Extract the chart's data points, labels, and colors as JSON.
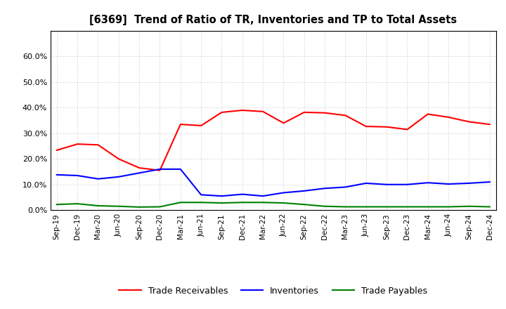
{
  "title": "[6369]  Trend of Ratio of TR, Inventories and TP to Total Assets",
  "x_labels": [
    "Sep-19",
    "Dec-19",
    "Mar-20",
    "Jun-20",
    "Sep-20",
    "Dec-20",
    "Mar-21",
    "Jun-21",
    "Sep-21",
    "Dec-21",
    "Mar-22",
    "Jun-22",
    "Sep-22",
    "Dec-22",
    "Mar-23",
    "Jun-23",
    "Sep-23",
    "Dec-23",
    "Mar-24",
    "Jun-24",
    "Sep-24",
    "Dec-24"
  ],
  "trade_receivables": [
    0.234,
    0.258,
    0.255,
    0.2,
    0.165,
    0.155,
    0.335,
    0.33,
    0.382,
    0.39,
    0.385,
    0.34,
    0.382,
    0.38,
    0.37,
    0.327,
    0.325,
    0.315,
    0.375,
    0.363,
    0.345,
    0.335
  ],
  "inventories": [
    0.138,
    0.135,
    0.122,
    0.13,
    0.145,
    0.16,
    0.16,
    0.06,
    0.055,
    0.062,
    0.055,
    0.068,
    0.075,
    0.085,
    0.09,
    0.105,
    0.1,
    0.1,
    0.107,
    0.102,
    0.105,
    0.11
  ],
  "trade_payables": [
    0.022,
    0.025,
    0.017,
    0.015,
    0.012,
    0.013,
    0.03,
    0.03,
    0.028,
    0.03,
    0.03,
    0.028,
    0.022,
    0.015,
    0.013,
    0.013,
    0.013,
    0.013,
    0.013,
    0.013,
    0.015,
    0.013
  ],
  "line_color_tr": "#FF0000",
  "line_color_inv": "#0000FF",
  "line_color_tp": "#008000",
  "ylim": [
    0.0,
    0.7
  ],
  "yticks": [
    0.0,
    0.1,
    0.2,
    0.3,
    0.4,
    0.5,
    0.6
  ],
  "background_color": "#FFFFFF",
  "grid_color": "#AAAAAA",
  "legend_labels": [
    "Trade Receivables",
    "Inventories",
    "Trade Payables"
  ]
}
